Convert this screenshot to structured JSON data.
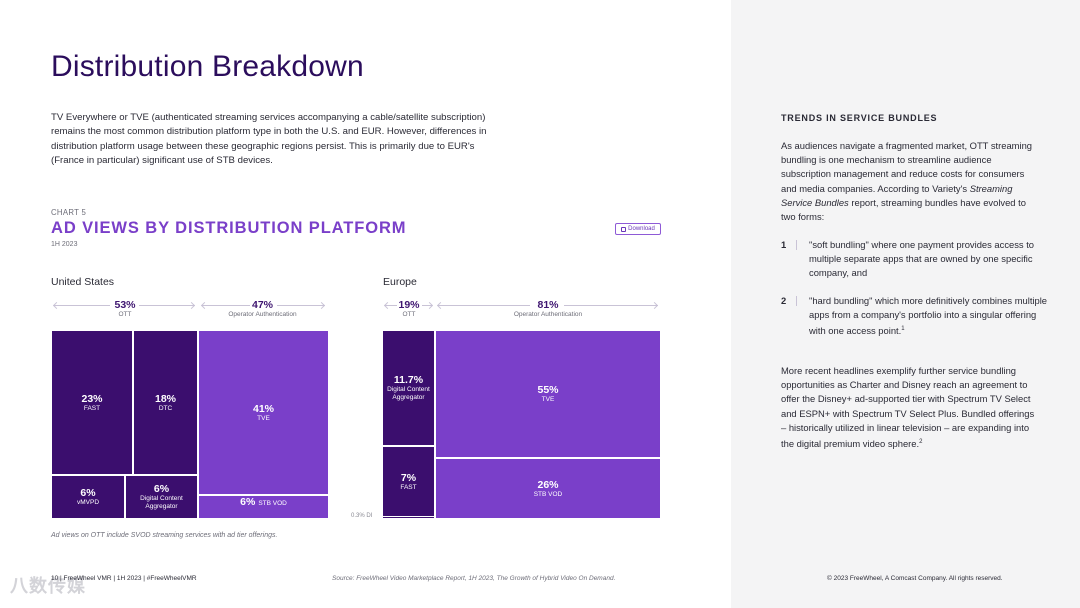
{
  "page": {
    "title": "Distribution Breakdown",
    "intro": "TV Everywhere or TVE (authenticated streaming services accompanying a cable/satellite subscription) remains the most common distribution platform type in both the U.S. and EUR. However, differences in distribution platform usage between these geographic regions persist. This is primarily due to EUR's (France in particular) significant use of STB devices.",
    "footnote": "Ad views on OTT include SVOD streaming services with ad tier offerings.",
    "footer_left": "10 | FreeWheel VMR | 1H 2023 | #FreeWheelVMR",
    "footer_source": "Source: FreeWheel Video Marketplace Report, 1H 2023, The Growth of Hybrid Video On Demand.",
    "footer_copyright": "© 2023 FreeWheel, A Comcast Company. All rights reserved.",
    "watermark": "八数传媒"
  },
  "chart": {
    "kicker": "CHART 5",
    "title": "AD VIEWS BY DISTRIBUTION PLATFORM",
    "period": "1H 2023",
    "download_label": "Download",
    "tiny_label": "0.3% DI"
  },
  "chart_data": [
    {
      "type": "treemap",
      "region": "United States",
      "groups": [
        {
          "name": "OTT",
          "value": 53,
          "label": "53%",
          "children": [
            {
              "name": "FAST",
              "value": 23,
              "label": "23%"
            },
            {
              "name": "DTC",
              "value": 18,
              "label": "18%"
            },
            {
              "name": "vMVPD",
              "value": 6,
              "label": "6%"
            },
            {
              "name": "Digital Content Aggregator",
              "value": 6,
              "label": "6%"
            }
          ]
        },
        {
          "name": "Operator Authentication",
          "value": 47,
          "label": "47%",
          "children": [
            {
              "name": "TVE",
              "value": 41,
              "label": "41%"
            },
            {
              "name": "STB VOD",
              "value": 6,
              "label": "6%"
            }
          ]
        }
      ],
      "colors": {
        "OTT": "#3b0e6e",
        "Operator Authentication": "#7a3fc9"
      }
    },
    {
      "type": "treemap",
      "region": "Europe",
      "groups": [
        {
          "name": "OTT",
          "value": 19,
          "label": "19%",
          "children": [
            {
              "name": "Digital Content Aggregator",
              "value": 11.7,
              "label": "11.7%"
            },
            {
              "name": "FAST",
              "value": 7,
              "label": "7%"
            },
            {
              "name": "DI",
              "value": 0.3,
              "label": "0.3%"
            }
          ]
        },
        {
          "name": "Operator Authentication",
          "value": 81,
          "label": "81%",
          "children": [
            {
              "name": "TVE",
              "value": 55,
              "label": "55%"
            },
            {
              "name": "STB VOD",
              "value": 26,
              "label": "26%"
            }
          ]
        }
      ],
      "colors": {
        "OTT": "#3b0e6e",
        "Operator Authentication": "#7a3fc9"
      }
    }
  ],
  "labels": {
    "us": {
      "region": "United States",
      "ott_pct": "53%",
      "ott": "OTT",
      "op_pct": "47%",
      "op": "Operator Authentication",
      "fast_v": "23%",
      "fast_n": "FAST",
      "dtc_v": "18%",
      "dtc_n": "DTC",
      "tve_v": "41%",
      "tve_n": "TVE",
      "vmvpd_v": "6%",
      "vmvpd_n": "vMVPD",
      "dca_v": "6%",
      "dca_n": "Digital Content Aggregator",
      "stb_v": "6%",
      "stb_n": "STB VOD"
    },
    "eu": {
      "region": "Europe",
      "ott_pct": "19%",
      "ott": "OTT",
      "op_pct": "81%",
      "op": "Operator Authentication",
      "dca_v": "11.7%",
      "dca_n": "Digital Content Aggregator",
      "fast_v": "7%",
      "fast_n": "FAST",
      "tve_v": "55%",
      "tve_n": "TVE",
      "stb_v": "26%",
      "stb_n": "STB VOD"
    }
  },
  "sidebar": {
    "heading": "TRENDS IN SERVICE BUNDLES",
    "para1_a": "As audiences navigate a fragmented market, OTT streaming bundling is one mechanism to streamline audience subscription management and reduce costs for consumers and media companies. According to Variety's ",
    "para1_italic": "Streaming Service Bundles",
    "para1_b": " report, streaming bundles have evolved to two forms:",
    "item1_num": "1",
    "item1_text": "\"soft bundling\" where one payment provides access to multiple separate apps that are owned by one specific company, and",
    "item2_num": "2",
    "item2_text": "\"hard bundling\" which more definitively combines multiple apps from a company's portfolio into a singular offering with one access point.",
    "item2_sup": "1",
    "para2": "More recent headlines exemplify further service bundling opportunities as Charter and Disney reach an agreement to offer the Disney+ ad-supported tier with Spectrum TV Select and ESPN+ with Spectrum TV Select Plus. Bundled offerings – historically utilized in linear television – are expanding into the digital premium video sphere.",
    "para2_sup": "2"
  }
}
